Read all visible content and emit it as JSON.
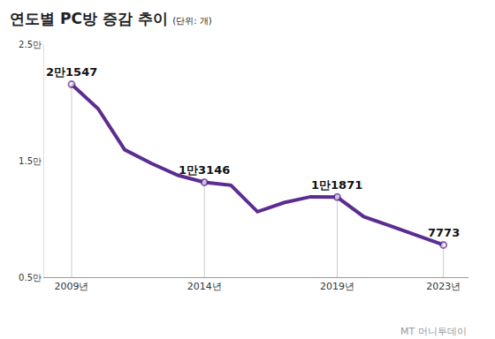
{
  "chart_data": {
    "type": "line",
    "title": "연도별 PC방 증감 추이",
    "subtitle": "(단위: 개)",
    "categories": [
      "2009년",
      null,
      null,
      null,
      null,
      "2014년",
      null,
      null,
      null,
      null,
      "2019년",
      null,
      null,
      null,
      "2023년"
    ],
    "values": [
      21547,
      19450,
      15940,
      14770,
      13750,
      13146,
      12890,
      10620,
      11400,
      11900,
      11871,
      10200,
      9400,
      8600,
      7773
    ],
    "value_labels": [
      "2만1547",
      null,
      null,
      null,
      null,
      "1만3146",
      null,
      null,
      null,
      null,
      "1만1871",
      null,
      null,
      null,
      "7773"
    ],
    "color": "#5c2d91",
    "ylim": [
      5000,
      25000
    ],
    "yticks": [
      {
        "value": 5000,
        "label": "0.5만"
      },
      {
        "value": 15000,
        "label": "1.5만"
      },
      {
        "value": 25000,
        "label": "2.5만"
      }
    ],
    "grid": false,
    "data_labels": true,
    "source": "MT 머니투데이"
  }
}
